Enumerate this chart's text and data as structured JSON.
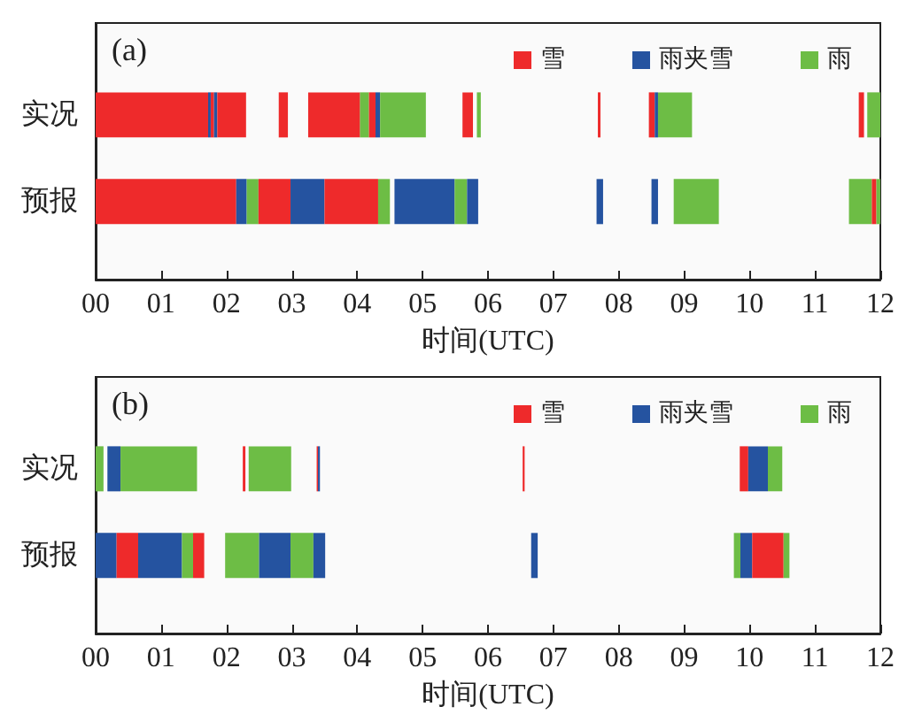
{
  "chart_data": [
    {
      "type": "bar",
      "orientation": "horizontal",
      "title": "(a)",
      "xlabel": "时间(UTC)",
      "categories": [
        "实况",
        "预报"
      ],
      "xlim": [
        0,
        12
      ],
      "xticks": [
        {
          "value": 0,
          "label": "00"
        },
        {
          "value": 1,
          "label": "01"
        },
        {
          "value": 2,
          "label": "02"
        },
        {
          "value": 3,
          "label": "03"
        },
        {
          "value": 4,
          "label": "04"
        },
        {
          "value": 5,
          "label": "05"
        },
        {
          "value": 6,
          "label": "06"
        },
        {
          "value": 7,
          "label": "07"
        },
        {
          "value": 8,
          "label": "08"
        },
        {
          "value": 9,
          "label": "09"
        },
        {
          "value": 10,
          "label": "10"
        },
        {
          "value": 11,
          "label": "11"
        },
        {
          "value": 12,
          "label": "12"
        }
      ],
      "legend": "top right",
      "series": [
        {
          "name": "雪",
          "color": "#ee2a2b",
          "base": [
            0,
            null
          ],
          "values": [
            1.72,
            null
          ]
        },
        {
          "name": "雨夹雪",
          "color": "#2553a0",
          "base": [
            1.72,
            null
          ],
          "values": [
            0.04,
            null
          ]
        },
        {
          "name": "雨",
          "color": "#6dbd45",
          "base": [
            4.04,
            null
          ],
          "values": [
            0.14,
            null
          ]
        },
        {
          "color": "#ee2a2b",
          "base": [
            1.76,
            null
          ],
          "values": [
            0.05,
            null
          ]
        },
        {
          "color": "#2553a0",
          "base": [
            1.81,
            null
          ],
          "values": [
            0.05,
            null
          ]
        },
        {
          "color": "#ee2a2b",
          "base": [
            1.86,
            null
          ],
          "values": [
            0.44,
            null
          ]
        },
        {
          "color": "#ee2a2b",
          "base": [
            2.8,
            null
          ],
          "values": [
            0.14,
            null
          ]
        },
        {
          "color": "#ee2a2b",
          "base": [
            3.25,
            null
          ],
          "values": [
            0.79,
            null
          ]
        },
        {
          "color": "#ee2a2b",
          "base": [
            4.18,
            null
          ],
          "values": [
            0.1,
            null
          ]
        },
        {
          "color": "#2553a0",
          "base": [
            4.28,
            null
          ],
          "values": [
            0.07,
            null
          ]
        },
        {
          "color": "#6dbd45",
          "base": [
            4.35,
            null
          ],
          "values": [
            0.7,
            null
          ]
        },
        {
          "color": "#ee2a2b",
          "base": [
            5.61,
            null
          ],
          "values": [
            0.16,
            null
          ]
        },
        {
          "color": "#6dbd45",
          "base": [
            5.83,
            null
          ],
          "values": [
            0.06,
            null
          ]
        },
        {
          "color": "#ee2a2b",
          "base": [
            7.68,
            null
          ],
          "values": [
            0.04,
            null
          ]
        },
        {
          "color": "#ee2a2b",
          "base": [
            8.46,
            null
          ],
          "values": [
            0.09,
            null
          ]
        },
        {
          "color": "#2553a0",
          "base": [
            8.55,
            null
          ],
          "values": [
            0.05,
            null
          ]
        },
        {
          "color": "#6dbd45",
          "base": [
            8.6,
            null
          ],
          "values": [
            0.52,
            null
          ]
        },
        {
          "color": "#ee2a2b",
          "base": [
            11.67,
            null
          ],
          "values": [
            0.08,
            null
          ]
        },
        {
          "color": "#6dbd45",
          "base": [
            11.8,
            null
          ],
          "values": [
            0.2,
            null
          ]
        },
        {
          "color": "#ee2a2b",
          "base": [
            null,
            0
          ],
          "values": [
            null,
            2.15
          ]
        },
        {
          "color": "#2553a0",
          "base": [
            null,
            2.15
          ],
          "values": [
            null,
            0.16
          ]
        },
        {
          "color": "#6dbd45",
          "base": [
            null,
            2.31
          ],
          "values": [
            null,
            0.18
          ]
        },
        {
          "color": "#ee2a2b",
          "base": [
            null,
            2.49
          ],
          "values": [
            null,
            0.49
          ]
        },
        {
          "color": "#2553a0",
          "base": [
            null,
            2.98
          ],
          "values": [
            null,
            0.52
          ]
        },
        {
          "color": "#ee2a2b",
          "base": [
            null,
            3.5
          ],
          "values": [
            null,
            0.82
          ]
        },
        {
          "color": "#6dbd45",
          "base": [
            null,
            4.32
          ],
          "values": [
            null,
            0.18
          ]
        },
        {
          "color": "#2553a0",
          "base": [
            null,
            4.57
          ],
          "values": [
            null,
            0.92
          ]
        },
        {
          "color": "#6dbd45",
          "base": [
            null,
            5.49
          ],
          "values": [
            null,
            0.19
          ]
        },
        {
          "color": "#2553a0",
          "base": [
            null,
            5.68
          ],
          "values": [
            null,
            0.17
          ]
        },
        {
          "color": "#2553a0",
          "base": [
            null,
            7.66
          ],
          "values": [
            null,
            0.1
          ]
        },
        {
          "color": "#2553a0",
          "base": [
            null,
            8.5
          ],
          "values": [
            null,
            0.1
          ]
        },
        {
          "color": "#6dbd45",
          "base": [
            null,
            8.84
          ],
          "values": [
            null,
            0.69
          ]
        },
        {
          "color": "#6dbd45",
          "base": [
            null,
            11.52
          ],
          "values": [
            null,
            0.35
          ]
        },
        {
          "color": "#ee2a2b",
          "base": [
            null,
            11.87
          ],
          "values": [
            null,
            0.07
          ]
        },
        {
          "color": "#6dbd45",
          "base": [
            null,
            11.94
          ],
          "values": [
            null,
            0.06
          ]
        }
      ]
    },
    {
      "type": "bar",
      "orientation": "horizontal",
      "title": "(b)",
      "xlabel": "时间(UTC)",
      "categories": [
        "实况",
        "预报"
      ],
      "xlim": [
        0,
        12
      ],
      "xticks": [
        {
          "value": 0,
          "label": "00"
        },
        {
          "value": 1,
          "label": "01"
        },
        {
          "value": 2,
          "label": "02"
        },
        {
          "value": 3,
          "label": "03"
        },
        {
          "value": 4,
          "label": "04"
        },
        {
          "value": 5,
          "label": "05"
        },
        {
          "value": 6,
          "label": "06"
        },
        {
          "value": 7,
          "label": "07"
        },
        {
          "value": 8,
          "label": "08"
        },
        {
          "value": 9,
          "label": "09"
        },
        {
          "value": 10,
          "label": "10"
        },
        {
          "value": 11,
          "label": "11"
        },
        {
          "value": 12,
          "label": "12"
        }
      ],
      "legend": "top right",
      "series": [
        {
          "name": "雪",
          "color": "#ee2a2b",
          "base": [
            2.25,
            null
          ],
          "values": [
            0.04,
            null
          ]
        },
        {
          "name": "雨夹雪",
          "color": "#2553a0",
          "base": [
            0.18,
            null
          ],
          "values": [
            0.2,
            null
          ]
        },
        {
          "name": "雨",
          "color": "#6dbd45",
          "base": [
            0,
            null
          ],
          "values": [
            0.12,
            null
          ]
        },
        {
          "color": "#6dbd45",
          "base": [
            0.38,
            null
          ],
          "values": [
            1.17,
            null
          ]
        },
        {
          "color": "#6dbd45",
          "base": [
            2.34,
            null
          ],
          "values": [
            0.65,
            null
          ]
        },
        {
          "color": "#ee2a2b",
          "base": [
            3.38,
            null
          ],
          "values": [
            0.02,
            null
          ]
        },
        {
          "color": "#2553a0",
          "base": [
            3.4,
            null
          ],
          "values": [
            0.03,
            null
          ]
        },
        {
          "color": "#ee2a2b",
          "base": [
            6.53,
            null
          ],
          "values": [
            0.03,
            null
          ]
        },
        {
          "color": "#ee2a2b",
          "base": [
            9.85,
            null
          ],
          "values": [
            0.13,
            null
          ]
        },
        {
          "color": "#2553a0",
          "base": [
            9.98,
            null
          ],
          "values": [
            0.3,
            null
          ]
        },
        {
          "color": "#6dbd45",
          "base": [
            10.28,
            null
          ],
          "values": [
            0.22,
            null
          ]
        },
        {
          "color": "#2553a0",
          "base": [
            null,
            0
          ],
          "values": [
            null,
            0.32
          ]
        },
        {
          "color": "#ee2a2b",
          "base": [
            null,
            0.32
          ],
          "values": [
            null,
            0.33
          ]
        },
        {
          "color": "#2553a0",
          "base": [
            null,
            0.65
          ],
          "values": [
            null,
            0.67
          ]
        },
        {
          "color": "#6dbd45",
          "base": [
            null,
            1.32
          ],
          "values": [
            null,
            0.17
          ]
        },
        {
          "color": "#ee2a2b",
          "base": [
            null,
            1.49
          ],
          "values": [
            null,
            0.17
          ]
        },
        {
          "color": "#6dbd45",
          "base": [
            null,
            1.98
          ],
          "values": [
            null,
            0.52
          ]
        },
        {
          "color": "#2553a0",
          "base": [
            null,
            2.5
          ],
          "values": [
            null,
            0.48
          ]
        },
        {
          "color": "#6dbd45",
          "base": [
            null,
            2.98
          ],
          "values": [
            null,
            0.35
          ]
        },
        {
          "color": "#2553a0",
          "base": [
            null,
            3.33
          ],
          "values": [
            null,
            0.18
          ]
        },
        {
          "color": "#2553a0",
          "base": [
            null,
            6.66
          ],
          "values": [
            null,
            0.1
          ]
        },
        {
          "color": "#6dbd45",
          "base": [
            null,
            9.76
          ],
          "values": [
            null,
            0.1
          ]
        },
        {
          "color": "#2553a0",
          "base": [
            null,
            9.86
          ],
          "values": [
            null,
            0.18
          ]
        },
        {
          "color": "#ee2a2b",
          "base": [
            null,
            10.04
          ],
          "values": [
            null,
            0.48
          ]
        },
        {
          "color": "#6dbd45",
          "base": [
            null,
            10.52
          ],
          "values": [
            null,
            0.09
          ]
        }
      ]
    }
  ]
}
